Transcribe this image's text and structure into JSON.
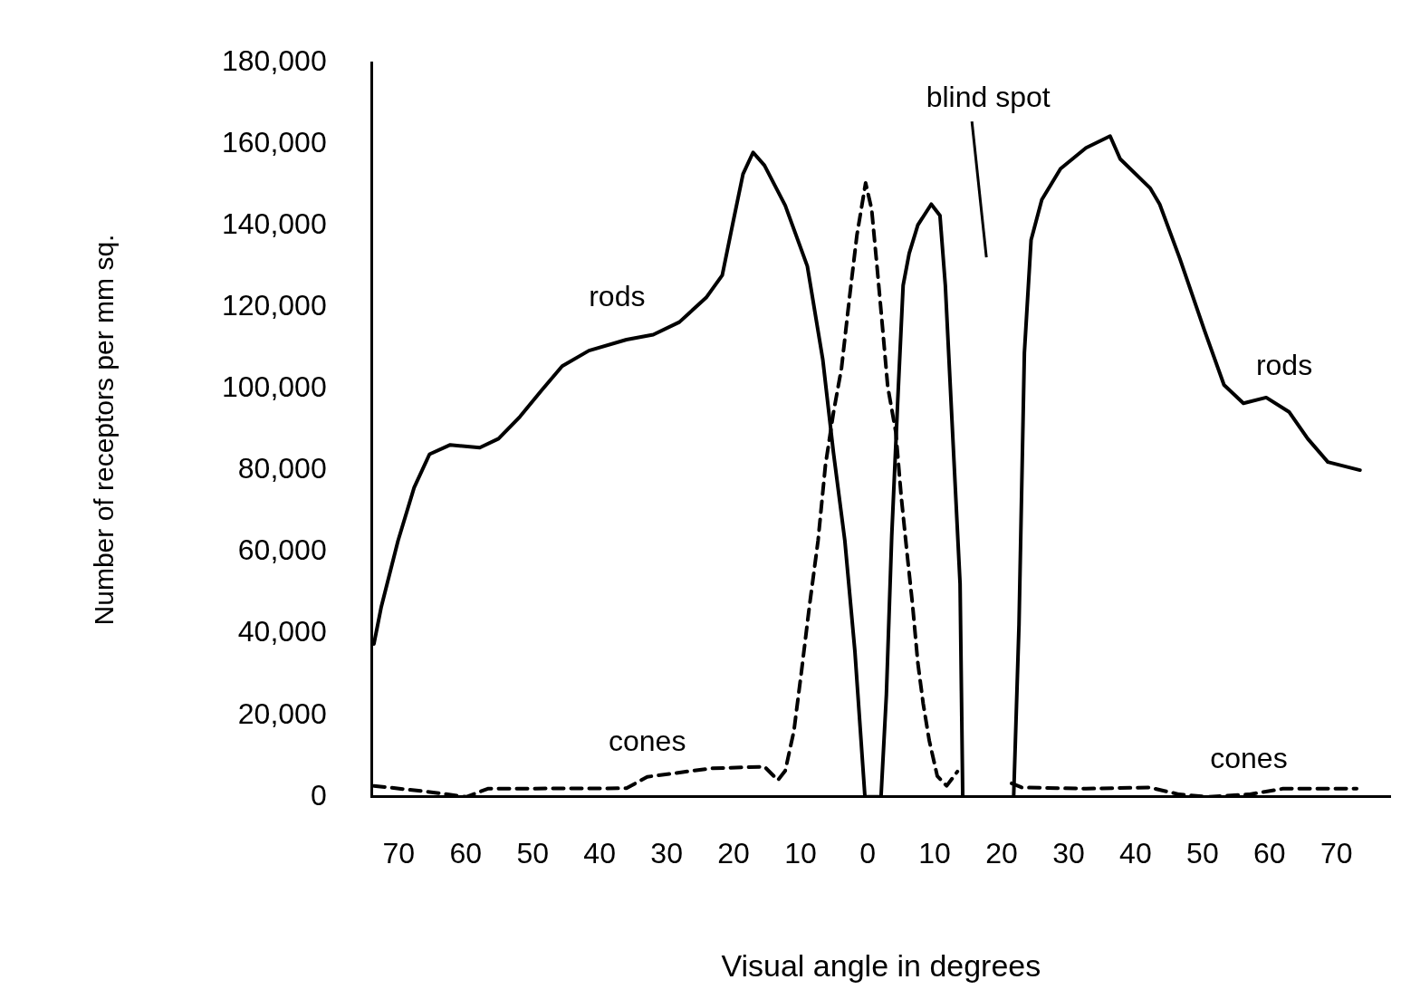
{
  "chart_data": {
    "type": "line",
    "xlabel": "Visual angle in degrees",
    "ylabel": "Number of receptors per mm sq.",
    "xlim": [
      -74,
      78
    ],
    "xticks": [
      {
        "value": -70,
        "label": "70"
      },
      {
        "value": -60,
        "label": "60"
      },
      {
        "value": -50,
        "label": "50"
      },
      {
        "value": -40,
        "label": "40"
      },
      {
        "value": -30,
        "label": "30"
      },
      {
        "value": -20,
        "label": "20"
      },
      {
        "value": -10,
        "label": "10"
      },
      0,
      10,
      20,
      30,
      40,
      50,
      60,
      70
    ],
    "ylim": [
      0,
      180000
    ],
    "yticks": [
      0,
      {
        "value": 20000,
        "label": "20,000"
      },
      {
        "value": 40000,
        "label": "40,000"
      },
      {
        "value": 60000,
        "label": "60,000"
      },
      {
        "value": 80000,
        "label": "80,000"
      },
      {
        "value": 100000,
        "label": "100,000"
      },
      {
        "value": 120000,
        "label": "120,000"
      },
      {
        "value": 140000,
        "label": "140,000"
      },
      {
        "value": 160000,
        "label": "160,000"
      },
      {
        "value": 180000,
        "label": "180,000"
      }
    ],
    "grid": false,
    "legend": false,
    "marker": "none",
    "series": [
      {
        "name": "rods",
        "color": "#000000",
        "line_style": "solid",
        "x": [
          -73.7,
          -72.6,
          -70.1,
          -67.7,
          -65.4,
          -62.3,
          -57.9,
          -55.1,
          -51.9,
          -48.7,
          -45.6,
          -41.6,
          -36.0,
          -32.0,
          -28.1,
          -24.1,
          -21.7,
          -20.1,
          -18.6,
          -17.1,
          -15.4,
          -12.3,
          -9.0,
          -6.7,
          -5.1,
          -3.4,
          -1.9,
          -0.4,
          2.0,
          2.8,
          3.6,
          4.5,
          5.3,
          6.2,
          7.5,
          9.5,
          10.8,
          11.6,
          12.6,
          13.8,
          14.2,
          18.0,
          21.8,
          22.6,
          23.4,
          24.4,
          26.0,
          28.8,
          32.6,
          36.2,
          37.7,
          42.2,
          43.6,
          46.6,
          50.3,
          53.2,
          56.1,
          59.5,
          62.9,
          65.7,
          68.7,
          73.5
        ],
        "values": [
          37500,
          46600,
          62800,
          75800,
          84000,
          86300,
          85600,
          87800,
          93200,
          99600,
          105600,
          109400,
          112100,
          113300,
          116400,
          122400,
          127900,
          140800,
          152700,
          158000,
          154800,
          145000,
          130100,
          107300,
          84400,
          62800,
          35700,
          0,
          0,
          25000,
          64000,
          97300,
          125400,
          133200,
          140200,
          145300,
          142500,
          125400,
          92000,
          52300,
          0,
          null,
          0,
          42300,
          108800,
          136500,
          146400,
          154000,
          159100,
          162000,
          156400,
          149200,
          145300,
          132000,
          114300,
          101000,
          96500,
          97900,
          94400,
          87800,
          82100,
          80100
        ]
      },
      {
        "name": "cones",
        "color": "#000000",
        "line_style": "dashed",
        "x": [
          -73.7,
          -65.4,
          -59.9,
          -56.7,
          -36.0,
          -32.9,
          -23.3,
          -15.4,
          -13.4,
          -12.3,
          -11.0,
          -9.9,
          -8.7,
          -7.4,
          -6.3,
          -5.1,
          -3.9,
          -2.7,
          -1.6,
          -0.3,
          0.6,
          1.4,
          2.3,
          3.0,
          4.2,
          5.0,
          5.9,
          6.7,
          7.5,
          8.3,
          9.2,
          10.4,
          11.8,
          13.4,
          17.5,
          21.5,
          23.0,
          32.6,
          42.1,
          46.5,
          50.9,
          56.9,
          62.0,
          73.0
        ],
        "values": [
          2700,
          1200,
          0,
          2000,
          2100,
          4900,
          7000,
          7400,
          4100,
          6400,
          16200,
          30400,
          46600,
          62800,
          81300,
          94200,
          105100,
          122500,
          137700,
          150500,
          144100,
          130100,
          113700,
          100600,
          89500,
          73900,
          59500,
          47200,
          32800,
          22800,
          13800,
          5100,
          2700,
          6200,
          null,
          3300,
          2300,
          2000,
          2300,
          600,
          0,
          600,
          2000,
          2000
        ]
      }
    ],
    "annotations": [
      "blind spot"
    ]
  }
}
